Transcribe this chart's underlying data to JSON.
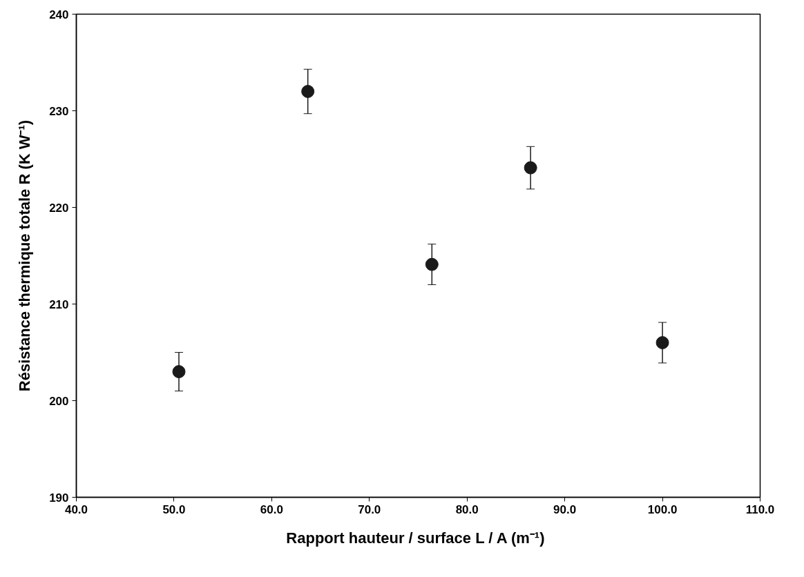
{
  "chart_data": {
    "type": "scatter",
    "xlabel": "Rapport hauteur / surface  L / A (m⁻¹)",
    "ylabel": "Résistance thermique totale R (K W⁻¹)",
    "x": [
      50.5,
      63.7,
      76.4,
      86.5,
      100.0
    ],
    "values": [
      203.0,
      232.0,
      214.1,
      224.1,
      206.0
    ],
    "errors": [
      2.0,
      2.3,
      2.1,
      2.2,
      2.1
    ],
    "color": "#1a1a1a",
    "marker": "circle",
    "grid": false,
    "xlim": [
      40,
      110
    ],
    "ylim": [
      190,
      240
    ],
    "xticks": [
      {
        "value": 40,
        "label": "40.0"
      },
      {
        "value": 50,
        "label": "50.0"
      },
      {
        "value": 60,
        "label": "60.0"
      },
      {
        "value": 70,
        "label": "70.0"
      },
      {
        "value": 80,
        "label": "80.0"
      },
      {
        "value": 90,
        "label": "90.0"
      },
      {
        "value": 100,
        "label": "100.0"
      },
      {
        "value": 110,
        "label": "110.0"
      }
    ],
    "yticks": [
      190,
      200,
      210,
      220,
      230,
      240
    ]
  }
}
